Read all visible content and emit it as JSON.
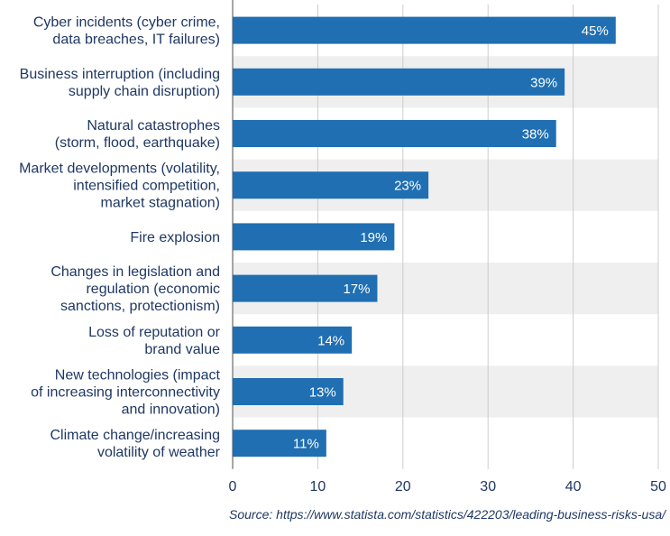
{
  "chart_data": {
    "type": "bar",
    "orientation": "horizontal",
    "categories": [
      [
        "Cyber incidents (cyber crime,",
        "data breaches, IT failures)"
      ],
      [
        "Business interruption (including",
        "supply chain disruption)"
      ],
      [
        "Natural catastrophes",
        "(storm, flood, earthquake)"
      ],
      [
        "Market developments (volatility,",
        "intensified competition,",
        "market stagnation)"
      ],
      [
        "Fire explosion"
      ],
      [
        "Changes in legislation and",
        "regulation (economic",
        "sanctions, protectionism)"
      ],
      [
        "Loss of reputation or",
        "brand value"
      ],
      [
        "New technologies (impact",
        "of increasing interconnectivity",
        "and innovation)"
      ],
      [
        "Climate change/increasing",
        "volatility of weather"
      ]
    ],
    "values": [
      45,
      39,
      38,
      23,
      19,
      17,
      14,
      13,
      11
    ],
    "data_labels": [
      "45%",
      "39%",
      "38%",
      "23%",
      "19%",
      "17%",
      "14%",
      "13%",
      "11%"
    ],
    "xlim": [
      0,
      50
    ],
    "x_ticks": [
      0,
      10,
      20,
      30,
      40,
      50
    ],
    "grid": "vertical",
    "alternating_row_shading": true,
    "colors": {
      "bar": "#1f6fb2",
      "shade": "#efefef",
      "grid": "#cccccc",
      "text": "#1f3864"
    }
  },
  "source": "Source: https://www.statista.com/statistics/422203/leading-business-risks-usa/"
}
